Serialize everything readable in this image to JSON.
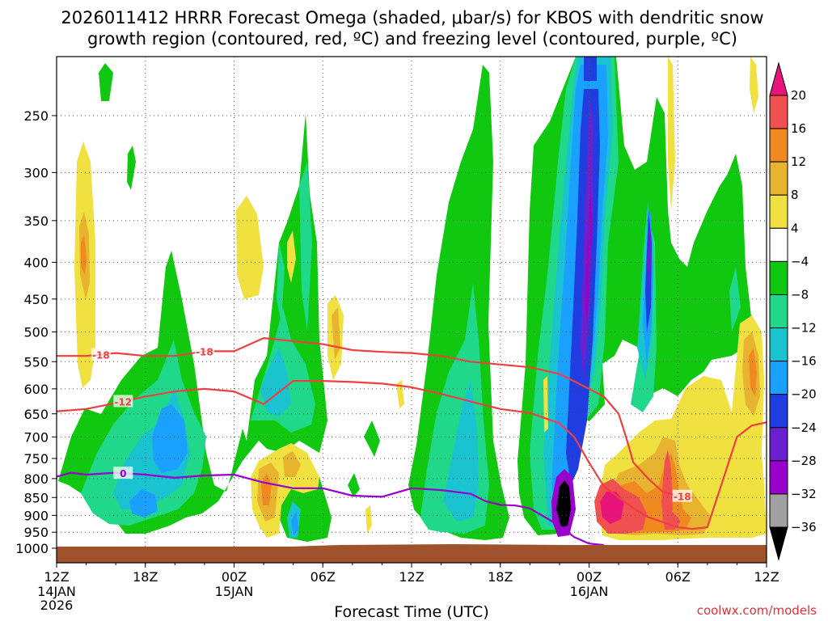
{
  "chart_data": {
    "type": "heatmap",
    "title_lines": [
      "2026011412 HRRR Forecast Omega (shaded, μbar/s) for KBOS with dendritic snow",
      "growth region (contoured, red, ºC) and freezing level (contoured, purple, ºC)"
    ],
    "xlabel": "Forecast Time (UTC)",
    "ylabel": "",
    "credit": "coolwx.com/models",
    "x_range_hours": [
      0,
      48
    ],
    "y_axis": {
      "scale": "log-pressure",
      "range_mb": [
        1000,
        200
      ],
      "inverted": true
    },
    "y_ticks": [
      250,
      300,
      350,
      400,
      450,
      500,
      550,
      600,
      650,
      700,
      750,
      800,
      850,
      900,
      950,
      1000
    ],
    "x_ticks": [
      {
        "hour": 0,
        "label": "12Z",
        "sub": [
          "14JAN",
          "2026"
        ]
      },
      {
        "hour": 6,
        "label": "18Z",
        "sub": []
      },
      {
        "hour": 12,
        "label": "00Z",
        "sub": [
          "15JAN"
        ]
      },
      {
        "hour": 18,
        "label": "06Z",
        "sub": []
      },
      {
        "hour": 24,
        "label": "12Z",
        "sub": []
      },
      {
        "hour": 30,
        "label": "18Z",
        "sub": []
      },
      {
        "hour": 36,
        "label": "00Z",
        "sub": [
          "16JAN"
        ]
      },
      {
        "hour": 42,
        "label": "06Z",
        "sub": []
      },
      {
        "hour": 48,
        "label": "12Z",
        "sub": []
      }
    ],
    "grid": true,
    "colorbar": {
      "levels": [
        -36,
        -32,
        -28,
        -24,
        -20,
        -16,
        -12,
        -8,
        -4,
        4,
        8,
        12,
        16,
        20
      ],
      "labels": [
        "20",
        "16",
        "12",
        "8",
        "4",
        "−4",
        "−8",
        "−12",
        "−16",
        "−20",
        "−24",
        "−28",
        "−32",
        "−36"
      ],
      "colors_low_to_high": [
        "#000000",
        "#a0a0a0",
        "#9900cc",
        "#6a1fd0",
        "#1f3de0",
        "#1aa0ff",
        "#19c3cf",
        "#1fd88a",
        "#10c810",
        "#ffffff",
        "#f0e040",
        "#e8b430",
        "#f08a20",
        "#f05050",
        "#e8147a"
      ]
    },
    "surface_mb": 1000,
    "series": [
      {
        "name": "-18",
        "color": "#ee4040",
        "x": [
          0,
          2,
          4,
          6,
          8,
          10,
          12,
          14,
          16,
          18,
          20,
          22,
          24,
          26,
          28,
          30,
          32,
          34,
          36,
          37,
          38,
          38.5,
          39,
          40,
          41,
          42,
          43
        ],
        "y": [
          540,
          540,
          535,
          540,
          540,
          532,
          532,
          510,
          515,
          520,
          530,
          533,
          535,
          540,
          550,
          555,
          560,
          572,
          600,
          615,
          650,
          700,
          760,
          800,
          835,
          845,
          850
        ]
      },
      {
        "name": "-12",
        "color": "#ee4040",
        "x": [
          0,
          2,
          4,
          6,
          8,
          10,
          12,
          14,
          16,
          18,
          20,
          22,
          24,
          26,
          28,
          30,
          32,
          34,
          35,
          36,
          37,
          38,
          39,
          40,
          41,
          42,
          43,
          44,
          45,
          46,
          47,
          48
        ],
        "y": [
          645,
          640,
          628,
          615,
          605,
          600,
          605,
          630,
          585,
          585,
          587,
          590,
          597,
          610,
          625,
          640,
          648,
          670,
          700,
          760,
          820,
          850,
          880,
          905,
          920,
          935,
          940,
          935,
          810,
          700,
          675,
          668
        ]
      },
      {
        "name": "0",
        "color": "#9900cc",
        "x": [
          0,
          1,
          2,
          4,
          6,
          8,
          10,
          12,
          13,
          14,
          16,
          18,
          20,
          22,
          24,
          26,
          28,
          29,
          30,
          31,
          32,
          34,
          35,
          36,
          37
        ],
        "y": [
          795,
          785,
          790,
          785,
          790,
          798,
          792,
          790,
          800,
          810,
          825,
          825,
          845,
          848,
          825,
          830,
          840,
          860,
          870,
          872,
          880,
          930,
          965,
          985,
          990
        ]
      }
    ]
  }
}
